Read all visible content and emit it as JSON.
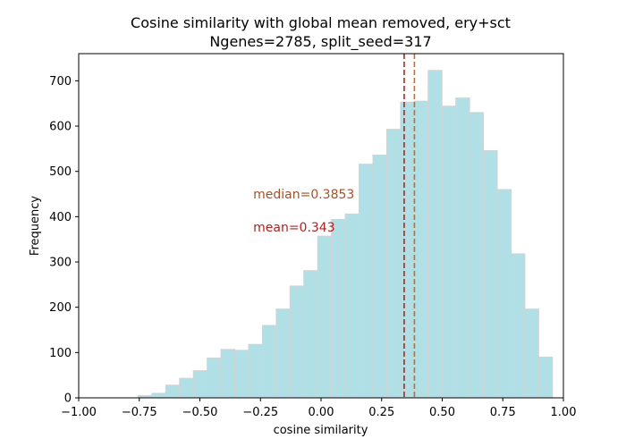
{
  "chart_data": {
    "type": "bar",
    "title_line1": "Cosine similarity with global mean removed, ery+sct",
    "title_line2": "Ngenes=2785, split_seed=317",
    "xlabel": "cosine similarity",
    "ylabel": "Frequency",
    "xlim": [
      -1.0,
      1.0
    ],
    "ylim": [
      0,
      760
    ],
    "x_ticks": [
      -1.0,
      -0.75,
      -0.5,
      -0.25,
      0.0,
      0.25,
      0.5,
      0.75,
      1.0
    ],
    "x_tick_labels": [
      "−1.00",
      "−0.75",
      "−0.50",
      "−0.25",
      "0.00",
      "0.25",
      "0.50",
      "0.75",
      "1.00"
    ],
    "y_ticks": [
      0,
      100,
      200,
      300,
      400,
      500,
      600,
      700
    ],
    "y_tick_labels": [
      "0",
      "100",
      "200",
      "300",
      "400",
      "500",
      "600",
      "700"
    ],
    "bin_edges": [
      -0.755,
      -0.698,
      -0.641,
      -0.584,
      -0.527,
      -0.47,
      -0.413,
      -0.356,
      -0.299,
      -0.242,
      -0.185,
      -0.128,
      -0.071,
      -0.014,
      0.043,
      0.1,
      0.157,
      0.214,
      0.271,
      0.328,
      0.385,
      0.442,
      0.499,
      0.556,
      0.613,
      0.67,
      0.727,
      0.784,
      0.841,
      0.898,
      0.955
    ],
    "counts": [
      5,
      10,
      28,
      43,
      60,
      88,
      107,
      105,
      118,
      160,
      196,
      247,
      281,
      357,
      394,
      406,
      516,
      536,
      593,
      653,
      655,
      723,
      644,
      662,
      630,
      546,
      460,
      318,
      196,
      90
    ],
    "bar_color": "#b0dfe5",
    "bar_edge_color": "#d3d3d3",
    "median": 0.3853,
    "mean": 0.343,
    "median_label": "median=0.3853",
    "mean_label": "mean=0.343",
    "median_color": "#d2691e",
    "mean_color": "#a52a2a",
    "median_text_color": "#a0522d",
    "mean_text_color": "#b22222",
    "median_label_pos": [
      -0.28,
      440
    ],
    "mean_label_pos": [
      -0.28,
      367
    ],
    "grid": false
  }
}
